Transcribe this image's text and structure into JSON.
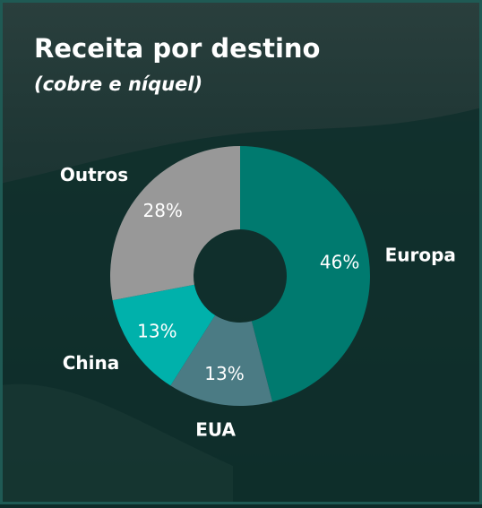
{
  "chart_data": {
    "type": "donut",
    "title": "Receita por destino",
    "subtitle": "(cobre e níquel)",
    "categories": [
      "Europa",
      "EUA",
      "China",
      "Outros"
    ],
    "values": [
      46,
      13,
      13,
      28
    ],
    "value_labels": [
      "46%",
      "13%",
      "13%",
      "28%"
    ],
    "colors": [
      "#007a6f",
      "#4b7b84",
      "#00b1ab",
      "#989898"
    ]
  }
}
